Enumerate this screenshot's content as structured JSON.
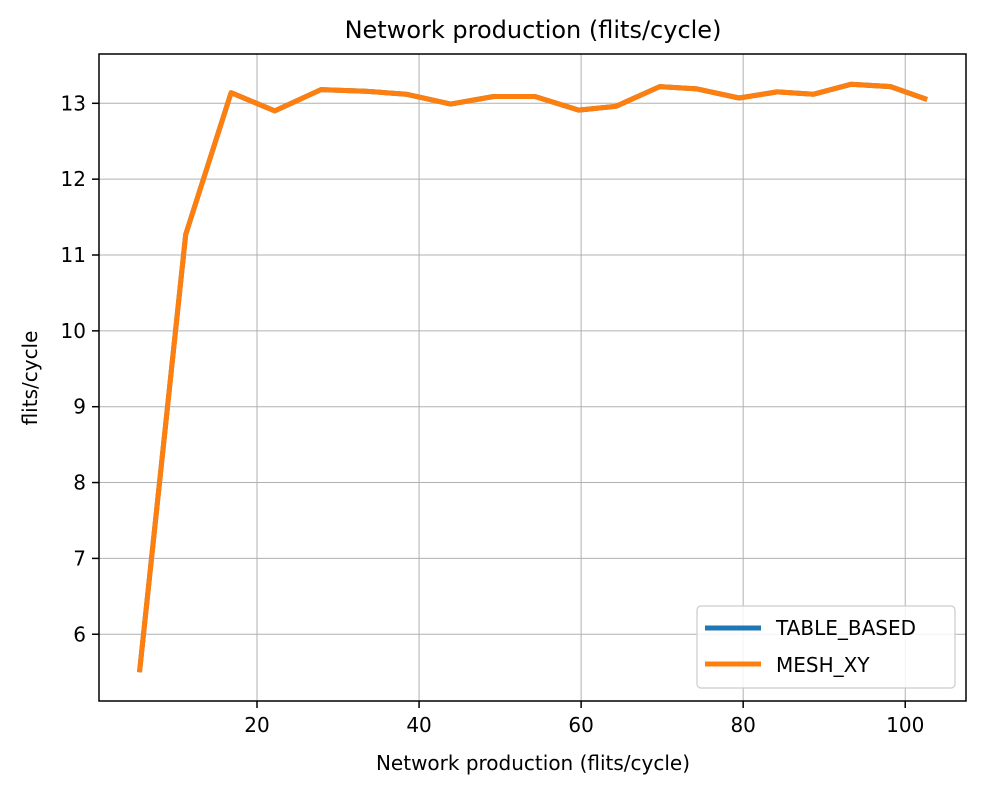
{
  "chart_data": {
    "type": "line",
    "title": "Network production (flits/cycle)",
    "xlabel": "Network production (flits/cycle)",
    "ylabel": "flits/cycle",
    "xlim": [
      0.5,
      107.5
    ],
    "ylim": [
      5.12,
      13.65
    ],
    "xticks": [
      20,
      40,
      60,
      80,
      100
    ],
    "yticks": [
      6,
      7,
      8,
      9,
      10,
      11,
      12,
      13
    ],
    "grid": true,
    "legend_position": "lower-right",
    "series": [
      {
        "name": "TABLE_BASED",
        "color": "#1f77b4",
        "x": [
          5.5,
          11.2,
          16.8,
          22.2,
          27.9,
          33.4,
          38.4,
          43.9,
          49.2,
          54.3,
          59.7,
          64.3,
          69.7,
          74.3,
          79.5,
          84.2,
          88.7,
          93.3,
          98.2,
          102.7
        ],
        "y": [
          5.5,
          11.27,
          13.14,
          12.9,
          13.18,
          13.16,
          13.12,
          12.99,
          13.09,
          13.09,
          12.91,
          12.96,
          13.22,
          13.19,
          13.07,
          13.15,
          13.12,
          13.25,
          13.22,
          13.05
        ]
      },
      {
        "name": "MESH_XY",
        "color": "#ff7f0e",
        "x": [
          5.5,
          11.2,
          16.8,
          22.2,
          27.9,
          33.4,
          38.4,
          43.9,
          49.2,
          54.3,
          59.7,
          64.3,
          69.7,
          74.3,
          79.5,
          84.2,
          88.7,
          93.3,
          98.2,
          102.7
        ],
        "y": [
          5.5,
          11.27,
          13.14,
          12.9,
          13.18,
          13.16,
          13.12,
          12.99,
          13.09,
          13.09,
          12.91,
          12.96,
          13.22,
          13.19,
          13.07,
          13.15,
          13.12,
          13.25,
          13.22,
          13.05
        ]
      }
    ]
  }
}
